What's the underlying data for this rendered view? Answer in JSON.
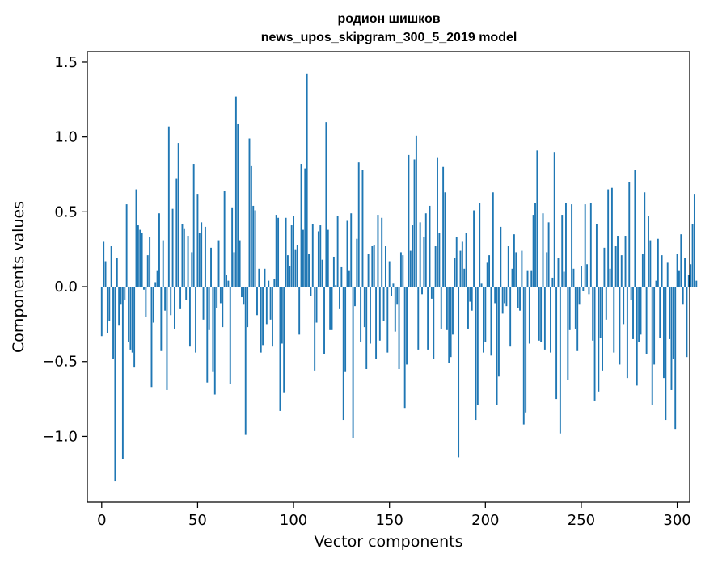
{
  "chart_data": {
    "type": "bar",
    "title_line1": "родион шишков",
    "title_line2": "news_upos_skipgram_300_5_2019 model",
    "xlabel": "Vector components",
    "ylabel": "Components values",
    "xlim": [
      -7.5,
      306.5
    ],
    "ylim": [
      -1.44,
      1.57
    ],
    "xticks": [
      0,
      50,
      100,
      150,
      200,
      250,
      300
    ],
    "xtick_labels": [
      "0",
      "50",
      "100",
      "150",
      "200",
      "250",
      "300"
    ],
    "yticks": [
      -1.0,
      -0.5,
      0.0,
      0.5,
      1.0,
      1.5
    ],
    "ytick_labels": [
      "−1.0",
      "−0.5",
      "0.0",
      "0.5",
      "1.0",
      "1.5"
    ],
    "color": "#1f77b4",
    "values": [
      -0.33,
      0.3,
      0.17,
      -0.31,
      -0.23,
      0.27,
      -0.48,
      -1.3,
      0.19,
      -0.26,
      -0.12,
      -1.15,
      -0.09,
      0.55,
      -0.37,
      -0.42,
      -0.44,
      -0.54,
      0.65,
      0.41,
      0.38,
      0.36,
      -0.02,
      -0.2,
      0.21,
      0.33,
      -0.67,
      -0.24,
      0.03,
      0.11,
      0.49,
      -0.43,
      0.31,
      -0.16,
      -0.69,
      1.07,
      -0.19,
      0.52,
      -0.28,
      0.72,
      0.96,
      -0.15,
      0.42,
      0.39,
      -0.09,
      0.34,
      -0.4,
      0.23,
      0.82,
      -0.44,
      0.62,
      0.36,
      0.43,
      -0.22,
      0.4,
      -0.64,
      -0.29,
      0.26,
      -0.57,
      -0.72,
      -0.14,
      0.31,
      -0.11,
      -0.27,
      0.64,
      0.08,
      0.04,
      -0.65,
      0.53,
      0.23,
      1.27,
      1.09,
      0.31,
      -0.07,
      -0.12,
      -0.99,
      -0.27,
      0.99,
      0.81,
      0.54,
      0.51,
      -0.19,
      0.12,
      -0.44,
      -0.39,
      0.12,
      -0.25,
      0.04,
      -0.22,
      -0.4,
      0.05,
      0.48,
      0.46,
      -0.83,
      -0.38,
      -0.71,
      0.46,
      0.21,
      0.14,
      0.41,
      0.47,
      0.25,
      0.28,
      -0.32,
      0.82,
      0.38,
      0.79,
      1.42,
      0.22,
      -0.06,
      0.42,
      -0.56,
      -0.24,
      0.37,
      0.41,
      0.18,
      -0.45,
      1.1,
      0.38,
      -0.29,
      -0.29,
      0.2,
      0.01,
      0.47,
      -0.15,
      0.13,
      -0.89,
      -0.57,
      0.44,
      0.11,
      0.49,
      -1.01,
      -0.13,
      0.32,
      0.83,
      -0.37,
      0.78,
      -0.27,
      -0.55,
      0.22,
      -0.38,
      0.27,
      0.28,
      -0.48,
      0.48,
      -0.36,
      0.46,
      -0.23,
      0.27,
      -0.44,
      0.17,
      -0.06,
      0.02,
      -0.3,
      -0.12,
      -0.55,
      0.23,
      0.21,
      -0.81,
      -0.52,
      0.88,
      0.24,
      0.41,
      0.85,
      1.01,
      -0.42,
      0.43,
      -0.05,
      0.33,
      0.49,
      -0.42,
      0.54,
      -0.08,
      -0.48,
      0.27,
      0.86,
      0.36,
      -0.28,
      0.8,
      0.63,
      -0.29,
      -0.51,
      -0.47,
      -0.32,
      0.19,
      0.33,
      -1.14,
      0.24,
      0.3,
      0.12,
      0.36,
      -0.28,
      -0.1,
      -0.16,
      0.51,
      -0.89,
      -0.79,
      0.56,
      0.02,
      -0.44,
      -0.37,
      0.16,
      0.21,
      -0.46,
      0.63,
      -0.11,
      -0.79,
      -0.6,
      0.4,
      -0.18,
      -0.11,
      -0.13,
      0.27,
      -0.4,
      0.12,
      0.35,
      0.23,
      -0.14,
      -0.16,
      0.24,
      -0.92,
      -0.84,
      0.11,
      -0.38,
      0.11,
      0.48,
      0.56,
      0.91,
      -0.36,
      -0.37,
      0.49,
      -0.42,
      0.23,
      0.43,
      -0.44,
      0.06,
      0.9,
      -0.75,
      0.19,
      -0.98,
      0.48,
      0.1,
      0.56,
      -0.62,
      -0.29,
      0.55,
      0.12,
      -0.28,
      -0.43,
      -0.12,
      0.14,
      -0.03,
      0.55,
      0.15,
      -0.05,
      0.56,
      -0.36,
      -0.76,
      0.42,
      -0.7,
      -0.34,
      -0.56,
      0.26,
      -0.22,
      0.65,
      0.12,
      0.66,
      -0.44,
      0.27,
      0.34,
      -0.52,
      0.21,
      -0.25,
      0.34,
      -0.61,
      0.7,
      -0.09,
      -0.35,
      0.78,
      -0.66,
      -0.37,
      -0.32,
      0.22,
      0.63,
      -0.45,
      0.47,
      0.31,
      -0.79,
      -0.52,
      0.04,
      0.32,
      -0.34,
      0.21,
      -0.61,
      -0.89,
      0.16,
      -0.35,
      -0.69,
      -0.48,
      -0.95,
      0.22,
      0.11,
      0.35,
      -0.12,
      0.19,
      -0.47,
      0.08,
      0.15,
      0.42,
      0.62,
      0.04
    ]
  }
}
